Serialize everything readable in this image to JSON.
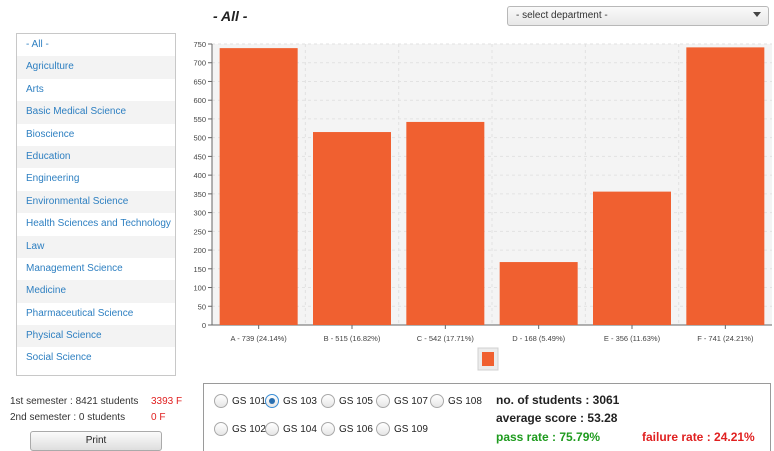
{
  "header": {
    "title": "- All -",
    "department_select": "- select department -"
  },
  "departments": [
    "- All -",
    "Agriculture",
    "Arts",
    "Basic Medical Science",
    "Bioscience",
    "Education",
    "Engineering",
    "Environmental Science",
    "Health Sciences and Technology",
    "Law",
    "Management Science",
    "Medicine",
    "Pharmaceutical Science",
    "Physical Science",
    "Social Science"
  ],
  "semesters": {
    "first": "1st semester : 8421 students",
    "first_fail": "3393 F",
    "second": "2nd semester : 0 students",
    "second_fail": "0 F"
  },
  "print_label": "Print",
  "courses": [
    {
      "label": "GS 101",
      "selected": false
    },
    {
      "label": "GS 103",
      "selected": true
    },
    {
      "label": "GS 105",
      "selected": false
    },
    {
      "label": "GS 107",
      "selected": false
    },
    {
      "label": "GS 108",
      "selected": false
    },
    {
      "label": "GS 102",
      "selected": false
    },
    {
      "label": "GS 104",
      "selected": false
    },
    {
      "label": "GS 106",
      "selected": false
    },
    {
      "label": "GS 109",
      "selected": false
    }
  ],
  "stats": {
    "students": "no. of students : 3061",
    "average": "average score : 53.28",
    "pass": "pass rate : 75.79%",
    "fail": "failure rate : 24.21%"
  },
  "colors": {
    "bar": "#f06030",
    "pass": "#1e9b1e",
    "fail": "#e02020",
    "link": "#2d7fc1"
  },
  "chart_data": {
    "type": "bar",
    "categories": [
      "A - 739 (24.14%)",
      "B - 515 (16.82%)",
      "C - 542 (17.71%)",
      "D - 168 (5.49%)",
      "E - 356 (11.63%)",
      "F - 741 (24.21%)"
    ],
    "values": [
      739,
      515,
      542,
      168,
      356,
      741
    ],
    "ylim": [
      0,
      750
    ],
    "yticks": [
      0,
      50,
      100,
      150,
      200,
      250,
      300,
      350,
      400,
      450,
      500,
      550,
      600,
      650,
      700,
      750
    ],
    "grid": true,
    "legend": "bottom"
  }
}
